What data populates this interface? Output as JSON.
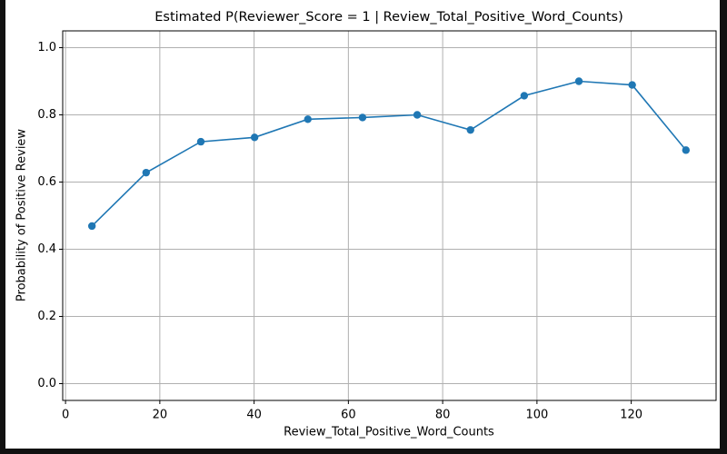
{
  "chart_data": {
    "type": "line",
    "title": "Estimated P(Reviewer_Score = 1 | Review_Total_Positive_Word_Counts)",
    "x_label": "Review_Total_Positive_Word_Counts",
    "y_label": "Probability of Positive Review",
    "x": [
      5.6,
      17.1,
      28.7,
      40.1,
      51.4,
      63.0,
      74.6,
      85.9,
      97.3,
      108.9,
      120.2,
      131.6
    ],
    "series": [
      {
        "color": "#1f77b4",
        "values": [
          0.469,
          0.628,
          0.72,
          0.733,
          0.787,
          0.792,
          0.8,
          0.755,
          0.857,
          0.9,
          0.889,
          0.695
        ]
      }
    ],
    "xlim": [
      -0.6,
      138
    ],
    "xticks": [
      0,
      20,
      40,
      60,
      80,
      100,
      120
    ],
    "ylim": [
      -0.05,
      1.05
    ],
    "yticks": [
      {
        "value": 0,
        "label": "0.0"
      },
      0.2,
      0.4,
      0.6,
      0.8,
      {
        "value": 1,
        "label": "1.0"
      }
    ],
    "grid": true
  }
}
